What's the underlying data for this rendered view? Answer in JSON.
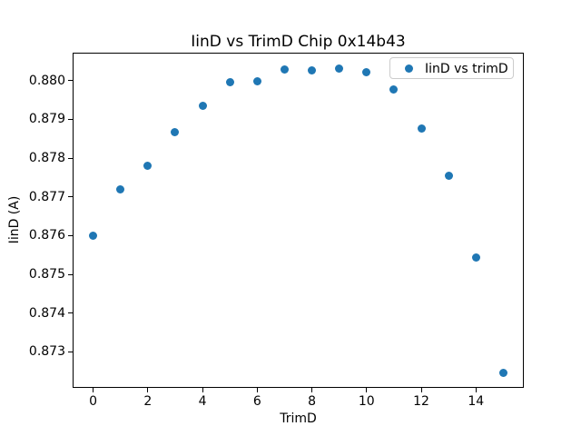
{
  "figure": {
    "background": "#ffffff",
    "text_color": "#000000"
  },
  "chart_data": {
    "type": "scatter",
    "title": "IinD vs TrimD Chip 0x14b43",
    "xlabel": "TrimD",
    "ylabel": "IinD (A)",
    "legend": {
      "label": "IinD vs trimD",
      "position": "upper right"
    },
    "marker_color": "#1f77b4",
    "grid": false,
    "xlim": [
      -0.75,
      15.75
    ],
    "ylim": [
      0.87207,
      0.88072
    ],
    "xticks": [
      0,
      2,
      4,
      6,
      8,
      10,
      12,
      14
    ],
    "xtick_labels": [
      "0",
      "2",
      "4",
      "6",
      "8",
      "10",
      "12",
      "14"
    ],
    "yticks": [
      0.873,
      0.874,
      0.875,
      0.876,
      0.877,
      0.878,
      0.879,
      0.88
    ],
    "ytick_labels": [
      "0.873",
      "0.874",
      "0.875",
      "0.876",
      "0.877",
      "0.878",
      "0.879",
      "0.880"
    ],
    "x": [
      0,
      1,
      2,
      3,
      4,
      5,
      6,
      7,
      8,
      9,
      10,
      11,
      12,
      13,
      14,
      15
    ],
    "y": [
      0.876,
      0.8772,
      0.87781,
      0.87866,
      0.87935,
      0.87996,
      0.87998,
      0.88028,
      0.88027,
      0.88032,
      0.88021,
      0.87976,
      0.87877,
      0.87754,
      0.87543,
      0.87246
    ]
  }
}
